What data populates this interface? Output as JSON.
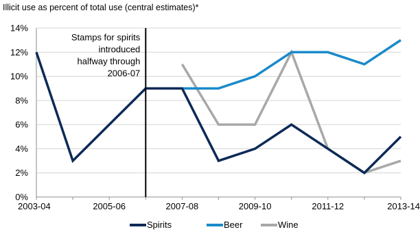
{
  "chart_data": {
    "type": "line",
    "title": "Illicit use as  percent of total use (central estimates)*",
    "xlabel": "",
    "ylabel": "",
    "categories": [
      "2003-04",
      "2004-05",
      "2005-06",
      "2006-07",
      "2007-08",
      "2008-09",
      "2009-10",
      "2010-11",
      "2011-12",
      "2012-13",
      "2013-14"
    ],
    "x_tick_labels": [
      "2003-04",
      "2005-06",
      "2007-08",
      "2009-10",
      "2011-12",
      "2013-14"
    ],
    "y_tick_labels": [
      "0%",
      "2%",
      "4%",
      "6%",
      "8%",
      "10%",
      "12%",
      "14%"
    ],
    "ylim": [
      0,
      14
    ],
    "y_unit": "%",
    "grid": true,
    "legend_position": "bottom",
    "series": [
      {
        "name": "Spirits",
        "color": "#0d2a57",
        "values": [
          12,
          3,
          6,
          9,
          9,
          3,
          4,
          6,
          4,
          2,
          5
        ]
      },
      {
        "name": "Beer",
        "color": "#1a8ac9",
        "values": [
          null,
          null,
          null,
          null,
          9,
          9,
          10,
          12,
          12,
          11,
          13
        ]
      },
      {
        "name": "Wine",
        "color": "#a8a8a8",
        "values": [
          null,
          null,
          null,
          null,
          11,
          6,
          6,
          12,
          4,
          2,
          3
        ]
      }
    ],
    "annotation": {
      "lines": [
        "Stamps for spirits",
        "introduced",
        "halfway through",
        "2006-07"
      ],
      "at_category": "2006-07"
    }
  }
}
